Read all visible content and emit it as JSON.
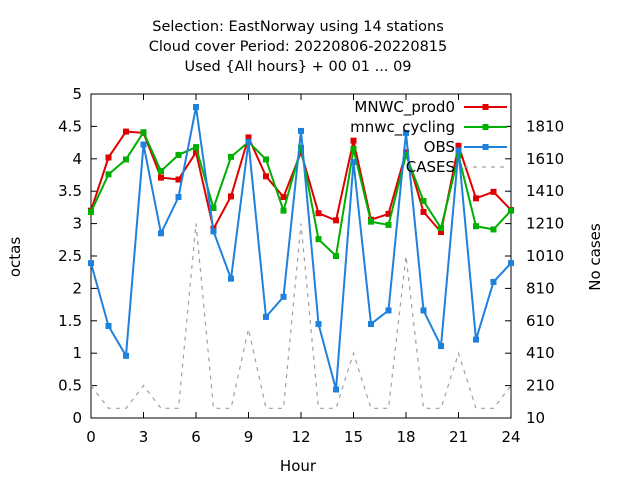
{
  "chart_data": {
    "type": "line",
    "title_lines": [
      "Selection: EastNorway using    14 stations",
      "Cloud cover   Period: 20220806-20220815",
      "Used {All hours} + 00 01 ... 09"
    ],
    "xlabel": "Hour",
    "ylabel": "octas",
    "y2label": "No cases",
    "xlim": [
      0,
      24
    ],
    "ylim": [
      0,
      5
    ],
    "y2lim": [
      10,
      2010
    ],
    "x_ticks": [
      0,
      3,
      6,
      9,
      12,
      15,
      18,
      21,
      24
    ],
    "y_ticks": [
      "0",
      "0.5",
      "1",
      "1.5",
      "2",
      "2.5",
      "3",
      "3.5",
      "4",
      "4.5",
      "5"
    ],
    "y2_ticks": [
      10,
      210,
      410,
      610,
      810,
      1010,
      1210,
      1410,
      1610,
      1810
    ],
    "legend_position": "top-right",
    "grid": false,
    "x": [
      0,
      1,
      2,
      3,
      4,
      5,
      6,
      7,
      8,
      9,
      10,
      11,
      12,
      13,
      14,
      15,
      16,
      17,
      18,
      19,
      20,
      21,
      22,
      23,
      24
    ],
    "series": [
      {
        "name": "MNWC_prod0",
        "color": "#e00000",
        "axis": "y",
        "style": "solid",
        "values": [
          3.2,
          4.02,
          4.42,
          4.4,
          3.71,
          3.68,
          4.1,
          2.92,
          3.42,
          4.33,
          3.73,
          3.41,
          4.1,
          3.16,
          3.05,
          4.28,
          3.06,
          3.15,
          4.1,
          3.18,
          2.87,
          4.2,
          3.39,
          3.49,
          3.21
        ]
      },
      {
        "name": "mnwc_cycling",
        "color": "#00b000",
        "axis": "y",
        "style": "solid",
        "values": [
          3.18,
          3.76,
          3.99,
          4.41,
          3.81,
          4.06,
          4.18,
          3.24,
          4.03,
          4.26,
          3.99,
          3.2,
          4.17,
          2.76,
          2.5,
          4.15,
          3.03,
          2.98,
          4.06,
          3.35,
          2.93,
          4.05,
          2.96,
          2.91,
          3.2
        ]
      },
      {
        "name": "OBS",
        "color": "#1e82dc",
        "axis": "y",
        "style": "solid",
        "values": [
          2.39,
          1.42,
          0.96,
          4.22,
          2.85,
          3.41,
          4.8,
          2.88,
          2.15,
          4.26,
          1.56,
          1.87,
          4.43,
          1.45,
          0.44,
          3.95,
          1.45,
          1.66,
          4.4,
          1.66,
          1.11,
          4.13,
          1.21,
          2.1,
          2.39
        ]
      },
      {
        "name": "CASES",
        "color": "#a0a0a0",
        "axis": "y2",
        "style": "dashed",
        "values": [
          210,
          70,
          70,
          210,
          70,
          70,
          1210,
          70,
          70,
          560,
          70,
          70,
          1210,
          70,
          70,
          410,
          70,
          70,
          1010,
          70,
          70,
          410,
          70,
          70,
          210
        ]
      }
    ]
  }
}
